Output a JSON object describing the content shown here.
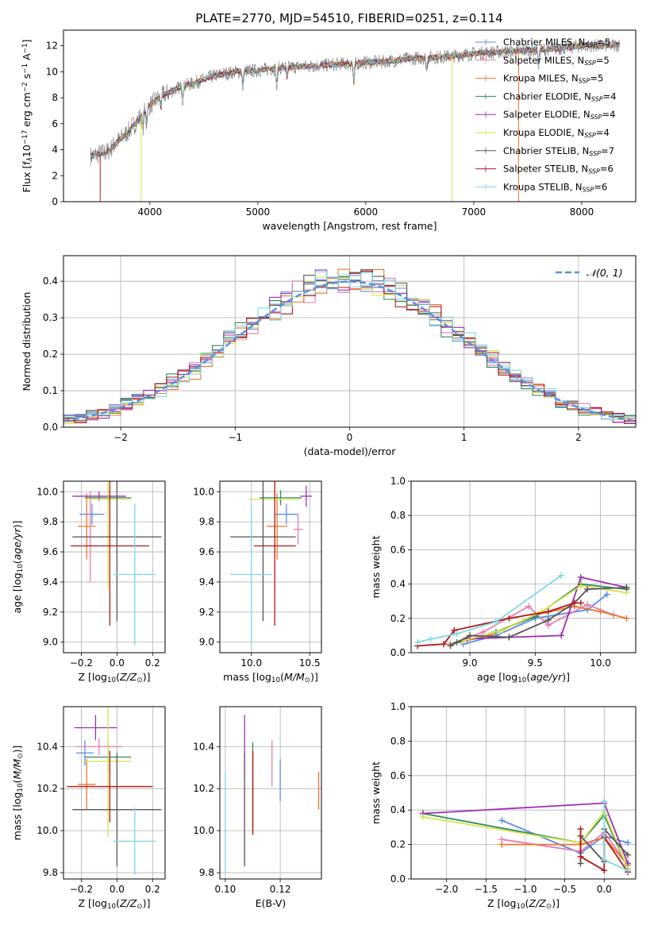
{
  "figure": {
    "title": "PLATE=2770, MJD=54510, FIBERID=0251, z=0.114"
  },
  "colors": {
    "Chabrier MILES": "#5b8ee6",
    "Salpeter MILES": "#e87bb3",
    "Kroupa MILES": "#e8772e",
    "Chabrier ELODIE": "#2e8b57",
    "Salpeter ELODIE": "#9b2fb0",
    "Kroupa ELODIE": "#d9e24a",
    "Chabrier STELIB": "#555555",
    "Salpeter STELIB": "#b01818",
    "Kroupa STELIB": "#7fd8e0",
    "spectrum_grey": "#7a7a7a",
    "gauss": "#5b8ee6"
  },
  "chart_data": [
    {
      "id": "spectrum",
      "type": "line",
      "title": "PLATE=2770, MJD=54510, FIBERID=0251, z=0.114",
      "xlabel": "wavelength [Angstrom, rest frame]",
      "ylabel": "Flux [f_λ 10^-17 erg cm^-2 s^-1 A^-1]",
      "xlim": [
        3200,
        8500
      ],
      "ylim": [
        0,
        13.2
      ],
      "xticks": [
        4000,
        5000,
        6000,
        7000,
        8000
      ],
      "yticks": [
        0,
        2,
        4,
        6,
        8,
        10,
        12
      ],
      "grid": false,
      "legend_position": "right",
      "continuum_x": [
        3450,
        3600,
        3700,
        3800,
        3900,
        4000,
        4100,
        4200,
        4300,
        4400,
        4500,
        4600,
        4800,
        5000,
        5200,
        5400,
        5600,
        5800,
        6000,
        6200,
        6400,
        6600,
        6800,
        7000,
        7200,
        7400,
        7600,
        7800,
        8000,
        8200,
        8400
      ],
      "continuum_y": [
        3.5,
        3.8,
        4.6,
        5.4,
        6.4,
        7.4,
        8.1,
        8.5,
        8.9,
        9.1,
        9.4,
        9.7,
        10.0,
        10.1,
        10.3,
        10.4,
        10.5,
        10.6,
        10.7,
        10.8,
        11.0,
        11.1,
        11.2,
        11.4,
        11.5,
        11.6,
        11.7,
        11.8,
        12.0,
        12.0,
        12.1
      ],
      "series": [
        {
          "name": "Chabrier MILES",
          "nssp": "5"
        },
        {
          "name": "Salpeter MILES",
          "nssp": "5"
        },
        {
          "name": "Kroupa MILES",
          "nssp": "5"
        },
        {
          "name": "Chabrier ELODIE",
          "nssp": "4"
        },
        {
          "name": "Salpeter ELODIE",
          "nssp": "4"
        },
        {
          "name": "Kroupa ELODIE",
          "nssp": "4"
        },
        {
          "name": "Chabrier STELIB",
          "nssp": "7"
        },
        {
          "name": "Salpeter STELIB",
          "nssp": "6"
        },
        {
          "name": "Kroupa STELIB",
          "nssp": "6"
        }
      ]
    },
    {
      "id": "residuals",
      "type": "histogram",
      "xlabel": "(data-model)/error",
      "ylabel": "Normed distribution",
      "xlim": [
        -2.5,
        2.5
      ],
      "ylim": [
        0,
        0.47
      ],
      "xticks": [
        -2,
        -1,
        0,
        1,
        2
      ],
      "yticks": [
        0.0,
        0.1,
        0.2,
        0.3,
        0.4
      ],
      "grid": true,
      "legend_position": "top-right",
      "legend_label": "𝒩(0, 1)",
      "bin_width": 0.1,
      "gaussian": {
        "mu": 0,
        "sigma": 1
      }
    },
    {
      "id": "age_vs_Z",
      "type": "errorbar",
      "xlabel": "Z [log10(Z/Z⊙)]",
      "ylabel": "age [log10(age/yr)]",
      "xlim": [
        -0.3,
        0.27
      ],
      "ylim": [
        8.93,
        10.07
      ],
      "xticks": [
        -0.2,
        0.0,
        0.2
      ],
      "yticks": [
        9.0,
        9.2,
        9.4,
        9.6,
        9.8,
        10.0
      ],
      "grid": true,
      "points": [
        {
          "series": "Chabrier MILES",
          "x": -0.14,
          "xerr": 0.07,
          "y": 9.85,
          "yerr": 0.07
        },
        {
          "series": "Salpeter MILES",
          "x": -0.15,
          "xerr": 0.08,
          "y": 9.7,
          "yerr": 0.3
        },
        {
          "series": "Kroupa MILES",
          "x": -0.17,
          "xerr": 0.05,
          "y": 9.77,
          "yerr": 0.22
        },
        {
          "series": "Chabrier ELODIE",
          "x": -0.05,
          "xerr": 0.13,
          "y": 9.96,
          "yerr": 0.05
        },
        {
          "series": "Salpeter ELODIE",
          "x": -0.1,
          "xerr": 0.15,
          "y": 9.97,
          "yerr": 0.03
        },
        {
          "series": "Kroupa ELODIE",
          "x": -0.05,
          "xerr": 0.13,
          "y": 9.95,
          "yerr": 0.6
        },
        {
          "series": "Chabrier STELIB",
          "x": 0.0,
          "xerr": 0.25,
          "y": 9.7,
          "yerr": 0.56
        },
        {
          "series": "Salpeter STELIB",
          "x": -0.04,
          "xerr": 0.22,
          "y": 9.64,
          "yerr": 0.53
        },
        {
          "series": "Kroupa STELIB",
          "x": 0.1,
          "xerr": 0.12,
          "y": 9.45,
          "yerr": 0.47
        }
      ]
    },
    {
      "id": "age_vs_mass",
      "type": "errorbar",
      "xlabel": "mass [log10(M/M⊙)]",
      "ylabel": "",
      "xlim": [
        9.73,
        10.6
      ],
      "ylim": [
        8.93,
        10.07
      ],
      "xticks": [
        10.0,
        10.5
      ],
      "yticks": [
        9.0,
        9.2,
        9.4,
        9.6,
        9.8,
        10.0
      ],
      "grid": true,
      "points": [
        {
          "series": "Chabrier MILES",
          "x": 10.3,
          "xerr": 0.1,
          "y": 9.85,
          "yerr": 0.07
        },
        {
          "series": "Salpeter MILES",
          "x": 10.4,
          "xerr": 0.04,
          "y": 9.75,
          "yerr": 0.1
        },
        {
          "series": "Kroupa MILES",
          "x": 10.22,
          "xerr": 0.09,
          "y": 9.77,
          "yerr": 0.22
        },
        {
          "series": "Chabrier ELODIE",
          "x": 10.25,
          "xerr": 0.18,
          "y": 9.96,
          "yerr": 0.05
        },
        {
          "series": "Salpeter ELODIE",
          "x": 10.47,
          "xerr": 0.05,
          "y": 9.97,
          "yerr": 0.07
        },
        {
          "series": "Kroupa ELODIE",
          "x": 10.2,
          "xerr": 0.22,
          "y": 9.95,
          "yerr": 0.6
        },
        {
          "series": "Chabrier STELIB",
          "x": 10.1,
          "xerr": 0.28,
          "y": 9.7,
          "yerr": 0.56
        },
        {
          "series": "Salpeter STELIB",
          "x": 10.2,
          "xerr": 0.18,
          "y": 9.64,
          "yerr": 0.53
        },
        {
          "series": "Kroupa STELIB",
          "x": 10.0,
          "xerr": 0.18,
          "y": 9.45,
          "yerr": 0.47
        }
      ]
    },
    {
      "id": "weight_vs_age",
      "type": "line",
      "xlabel": "age [log10(age/yr)]",
      "ylabel": "mass weight",
      "xlim": [
        8.55,
        10.27
      ],
      "ylim": [
        0,
        1.0
      ],
      "xticks": [
        9.0,
        9.5,
        10.0
      ],
      "yticks": [
        0.0,
        0.2,
        0.4,
        0.6,
        0.8,
        1.0
      ],
      "grid": true,
      "series": [
        {
          "name": "Chabrier MILES",
          "x": [
            8.95,
            9.2,
            9.5,
            9.9,
            10.05
          ],
          "y": [
            0.05,
            0.1,
            0.2,
            0.25,
            0.34
          ]
        },
        {
          "name": "Salpeter MILES",
          "x": [
            8.85,
            9.1,
            9.45,
            9.6,
            9.9,
            10.1
          ],
          "y": [
            0.05,
            0.12,
            0.27,
            0.16,
            0.28,
            0.22
          ]
        },
        {
          "name": "Kroupa MILES",
          "x": [
            8.85,
            9.15,
            9.5,
            9.8,
            10.0,
            10.2
          ],
          "y": [
            0.05,
            0.1,
            0.22,
            0.27,
            0.24,
            0.2
          ]
        },
        {
          "name": "Chabrier ELODIE",
          "x": [
            8.9,
            9.2,
            9.5,
            9.85,
            10.2
          ],
          "y": [
            0.06,
            0.12,
            0.21,
            0.4,
            0.37
          ]
        },
        {
          "name": "Salpeter ELODIE",
          "x": [
            8.98,
            9.3,
            9.7,
            9.85,
            10.2
          ],
          "y": [
            0.08,
            0.09,
            0.1,
            0.44,
            0.38
          ]
        },
        {
          "name": "Kroupa ELODIE",
          "x": [
            8.95,
            9.25,
            9.55,
            9.85,
            10.2
          ],
          "y": [
            0.07,
            0.13,
            0.24,
            0.39,
            0.35
          ]
        },
        {
          "name": "Chabrier STELIB",
          "x": [
            8.85,
            9.0,
            9.3,
            9.6,
            9.8,
            9.9,
            10.2
          ],
          "y": [
            0.04,
            0.1,
            0.09,
            0.19,
            0.29,
            0.37,
            0.38
          ]
        },
        {
          "name": "Salpeter STELIB",
          "x": [
            8.6,
            8.8,
            8.88,
            9.3,
            9.6,
            9.8,
            9.85
          ],
          "y": [
            0.04,
            0.05,
            0.13,
            0.2,
            0.24,
            0.29,
            0.29
          ]
        },
        {
          "name": "Kroupa STELIB",
          "x": [
            8.6,
            8.7,
            8.9,
            9.2,
            9.7
          ],
          "y": [
            0.06,
            0.08,
            0.11,
            0.18,
            0.45
          ]
        }
      ]
    },
    {
      "id": "mass_vs_Z",
      "type": "errorbar",
      "xlabel": "Z [log10(Z/Z⊙)]",
      "ylabel": "mass [log10(M/M⊙)]",
      "xlim": [
        -0.3,
        0.27
      ],
      "ylim": [
        9.77,
        10.59
      ],
      "xticks": [
        -0.2,
        0.0,
        0.2
      ],
      "yticks": [
        9.8,
        10.0,
        10.2,
        10.4
      ],
      "grid": true,
      "points": [
        {
          "series": "Chabrier MILES",
          "x": -0.18,
          "xerr": 0.05,
          "y": 10.37,
          "yerr": 0.06
        },
        {
          "series": "Salpeter MILES",
          "x": -0.1,
          "xerr": 0.13,
          "y": 10.4,
          "yerr": 0.04
        },
        {
          "series": "Kroupa MILES",
          "x": -0.17,
          "xerr": 0.05,
          "y": 10.22,
          "yerr": 0.12
        },
        {
          "series": "Chabrier ELODIE",
          "x": -0.05,
          "xerr": 0.13,
          "y": 10.35,
          "yerr": 0.07
        },
        {
          "series": "Salpeter ELODIE",
          "x": -0.12,
          "xerr": 0.12,
          "y": 10.49,
          "yerr": 0.06
        },
        {
          "series": "Kroupa ELODIE",
          "x": -0.05,
          "xerr": 0.13,
          "y": 10.33,
          "yerr": 0.36
        },
        {
          "series": "Chabrier STELIB",
          "x": 0.0,
          "xerr": 0.25,
          "y": 10.1,
          "yerr": 0.27
        },
        {
          "series": "Salpeter STELIB",
          "x": -0.04,
          "xerr": 0.24,
          "y": 10.21,
          "yerr": 0.17
        },
        {
          "series": "Kroupa STELIB",
          "x": 0.1,
          "xerr": 0.12,
          "y": 9.95,
          "yerr": 0.16
        }
      ]
    },
    {
      "id": "mass_vs_ebv",
      "type": "errorbar",
      "xlabel": "E(B-V)",
      "ylabel": "",
      "xlim": [
        0.098,
        0.135
      ],
      "ylim": [
        9.77,
        10.59
      ],
      "xticks": [
        0.1,
        0.12
      ],
      "xticklabels": [
        "0.10",
        "0.12"
      ],
      "yticks": [
        9.8,
        10.0,
        10.2,
        10.4
      ],
      "grid": true,
      "points": [
        {
          "series": "Chabrier MILES",
          "x": 0.12,
          "y": 10.24,
          "yerr": 0.1
        },
        {
          "series": "Salpeter MILES",
          "x": 0.117,
          "y": 10.32,
          "yerr": 0.11
        },
        {
          "series": "Kroupa MILES",
          "x": 0.134,
          "y": 10.19,
          "yerr": 0.09
        },
        {
          "series": "Chabrier ELODIE",
          "x": 0.11,
          "y": 10.2,
          "yerr": 0.22
        },
        {
          "series": "Salpeter ELODIE",
          "x": 0.107,
          "y": 10.4,
          "yerr": 0.15
        },
        {
          "series": "Kroupa ELODIE",
          "x": 0.11,
          "y": 10.18,
          "yerr": 0.2
        },
        {
          "series": "Chabrier STELIB",
          "x": 0.107,
          "y": 10.1,
          "yerr": 0.27
        },
        {
          "series": "Salpeter STELIB",
          "x": 0.11,
          "y": 10.18,
          "yerr": 0.2
        },
        {
          "series": "Kroupa STELIB",
          "x": 0.1,
          "y": 10.04,
          "yerr": 0.24
        }
      ]
    },
    {
      "id": "weight_vs_Z",
      "type": "line",
      "xlabel": "Z [log10(Z/Z⊙)]",
      "ylabel": "mass weight",
      "xlim": [
        -2.45,
        0.4
      ],
      "ylim": [
        0,
        1.0
      ],
      "xticks": [
        -2.0,
        -1.5,
        -1.0,
        -0.5,
        0.0
      ],
      "yticks": [
        0.0,
        0.2,
        0.4,
        0.6,
        0.8,
        1.0
      ],
      "grid": true,
      "series": [
        {
          "name": "Chabrier MILES",
          "x": [
            -1.3,
            -0.3,
            0.0,
            0.3
          ],
          "y": [
            0.34,
            0.15,
            0.25,
            0.21
          ]
        },
        {
          "name": "Salpeter MILES",
          "x": [
            -1.3,
            -0.3,
            0.0,
            0.3
          ],
          "y": [
            0.23,
            0.16,
            0.27,
            0.08
          ]
        },
        {
          "name": "Kroupa MILES",
          "x": [
            -1.3,
            -0.3,
            0.0,
            0.3
          ],
          "y": [
            0.2,
            0.2,
            0.24,
            0.08
          ]
        },
        {
          "name": "Chabrier ELODIE",
          "x": [
            -2.3,
            -0.3,
            0.0,
            0.3
          ],
          "y": [
            0.38,
            0.21,
            0.37,
            0.06
          ]
        },
        {
          "name": "Salpeter ELODIE",
          "x": [
            -2.3,
            0.0,
            0.3
          ],
          "y": [
            0.38,
            0.44,
            0.09
          ]
        },
        {
          "name": "Kroupa ELODIE",
          "x": [
            -2.3,
            -0.3,
            0.0,
            0.3
          ],
          "y": [
            0.36,
            0.21,
            0.39,
            0.06
          ]
        },
        {
          "name": "Chabrier STELIB",
          "x": [
            -0.3,
            -0.3,
            0.0,
            0.0,
            0.3
          ],
          "y": [
            0.09,
            0.25,
            0.1,
            0.29,
            0.14
          ]
        },
        {
          "name": "Salpeter STELIB",
          "x": [
            -0.3,
            -0.3,
            0.0,
            0.0,
            0.3
          ],
          "y": [
            0.29,
            0.13,
            0.05,
            0.24,
            0.04
          ]
        },
        {
          "name": "Kroupa STELIB",
          "x": [
            0.0,
            0.0,
            0.3
          ],
          "y": [
            0.45,
            0.11,
            0.05
          ]
        }
      ]
    }
  ]
}
